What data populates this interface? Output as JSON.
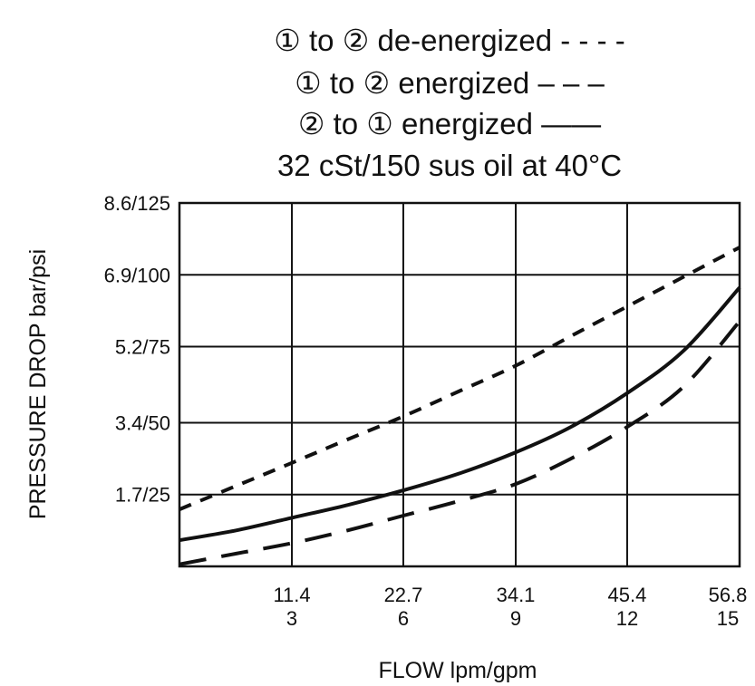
{
  "chart_data": {
    "type": "line",
    "title_lines": [
      "① to ② de-energized - - - -",
      "① to ② energized – – –",
      "② to ① energized ——",
      "32 cSt/150 sus oil at 40°C"
    ],
    "xlabel": "FLOW lpm/gpm",
    "ylabel": "PRESSURE DROP bar/psi",
    "xlim": [
      0,
      56.8
    ],
    "ylim": [
      0,
      8.6
    ],
    "x_ticks": [
      {
        "value": 11.4,
        "label": "11.4",
        "label2": "3"
      },
      {
        "value": 22.7,
        "label": "22.7",
        "label2": "6"
      },
      {
        "value": 34.1,
        "label": "34.1",
        "label2": "9"
      },
      {
        "value": 45.4,
        "label": "45.4",
        "label2": "12"
      },
      {
        "value": 56.8,
        "label": "56.8",
        "label2": "15"
      }
    ],
    "y_ticks": [
      {
        "value": 1.7,
        "label": "1.7/25"
      },
      {
        "value": 3.4,
        "label": "3.4/50"
      },
      {
        "value": 5.2,
        "label": "5.2/75"
      },
      {
        "value": 6.9,
        "label": "6.9/100"
      },
      {
        "value": 8.6,
        "label": "8.6/125"
      }
    ],
    "grid": true,
    "series": [
      {
        "name": "① to ② de-energized",
        "style": "dotted",
        "x": [
          0,
          5.7,
          11.4,
          17.0,
          22.7,
          28.4,
          34.1,
          39.7,
          45.4,
          51.1,
          56.8
        ],
        "y": [
          1.35,
          1.9,
          2.45,
          3.0,
          3.55,
          4.15,
          4.75,
          5.45,
          6.15,
          6.85,
          7.55
        ]
      },
      {
        "name": "① to ② energized",
        "style": "dashed",
        "x": [
          0,
          5.7,
          11.4,
          17.0,
          22.7,
          28.4,
          34.1,
          39.7,
          45.4,
          51.1,
          56.8
        ],
        "y": [
          0.05,
          0.3,
          0.55,
          0.85,
          1.2,
          1.55,
          1.95,
          2.55,
          3.3,
          4.25,
          5.8
        ]
      },
      {
        "name": "② to ① energized",
        "style": "solid",
        "x": [
          0,
          5.7,
          11.4,
          17.0,
          22.7,
          28.4,
          34.1,
          39.7,
          45.4,
          51.1,
          56.8
        ],
        "y": [
          0.62,
          0.85,
          1.15,
          1.45,
          1.8,
          2.2,
          2.7,
          3.3,
          4.1,
          5.1,
          6.6
        ]
      }
    ]
  }
}
